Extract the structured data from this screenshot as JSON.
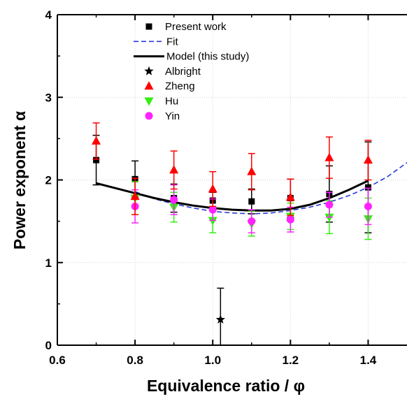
{
  "chart_data": {
    "type": "scatter",
    "xlabel": "Equivalence ratio / φ",
    "ylabel": "Power exponent α",
    "xlim": [
      0.6,
      1.5
    ],
    "ylim": [
      0,
      4
    ],
    "xticks": [
      "0.6",
      "0.8",
      "1.0",
      "1.2",
      "1.4"
    ],
    "yticks": [
      "0",
      "1",
      "2",
      "3",
      "4"
    ],
    "grid": true,
    "legend_position": "top-center",
    "series": [
      {
        "name": "Present work",
        "kind": "marker",
        "marker": "square",
        "color": "#000000",
        "points": [
          {
            "x": 0.7,
            "y": 2.24,
            "err_lo": 0.3,
            "err_hi": 0.3
          },
          {
            "x": 0.8,
            "y": 2.01,
            "err_lo": 0.22,
            "err_hi": 0.22
          },
          {
            "x": 0.9,
            "y": 1.78,
            "err_lo": 0.17,
            "err_hi": 0.17
          },
          {
            "x": 1.0,
            "y": 1.75,
            "err_lo": 0.1,
            "err_hi": 0.1
          },
          {
            "x": 1.1,
            "y": 1.74,
            "err_lo": 0.15,
            "err_hi": 0.15
          },
          {
            "x": 1.2,
            "y": 1.78,
            "err_lo": 0.23,
            "err_hi": 0.23
          },
          {
            "x": 1.3,
            "y": 1.83,
            "err_lo": 0.34,
            "err_hi": 0.34
          },
          {
            "x": 1.4,
            "y": 1.91,
            "err_lo": 0.55,
            "err_hi": 0.55
          }
        ]
      },
      {
        "name": "Fit",
        "kind": "dashed-line",
        "color": "#2a3bd9",
        "x": [
          0.8,
          0.85,
          0.9,
          0.95,
          1.0,
          1.05,
          1.1,
          1.15,
          1.2,
          1.25,
          1.3,
          1.35,
          1.4,
          1.45,
          1.5
        ],
        "y": [
          1.86,
          1.77,
          1.71,
          1.66,
          1.62,
          1.6,
          1.59,
          1.6,
          1.63,
          1.67,
          1.73,
          1.81,
          1.91,
          2.04,
          2.21
        ]
      },
      {
        "name": "Model (this study)",
        "kind": "solid-line",
        "color": "#000000",
        "x": [
          0.7,
          0.75,
          0.8,
          0.85,
          0.9,
          0.95,
          1.0,
          1.05,
          1.1,
          1.15,
          1.2,
          1.25,
          1.3,
          1.35,
          1.4
        ],
        "y": [
          1.96,
          1.9,
          1.84,
          1.78,
          1.73,
          1.69,
          1.66,
          1.64,
          1.63,
          1.63,
          1.65,
          1.7,
          1.78,
          1.88,
          1.99
        ]
      },
      {
        "name": "Albright",
        "kind": "marker",
        "marker": "star",
        "color": "#000000",
        "points": [
          {
            "x": 1.02,
            "y": 0.31,
            "err_lo": 0.38,
            "err_hi": 0.38
          }
        ]
      },
      {
        "name": "Zheng",
        "kind": "marker",
        "marker": "triangle-up",
        "color": "#ff0000",
        "points": [
          {
            "x": 0.7,
            "y": 2.47,
            "err_lo": 0.22,
            "err_hi": 0.22
          },
          {
            "x": 0.8,
            "y": 1.8,
            "err_lo": 0.22,
            "err_hi": 0.22
          },
          {
            "x": 0.9,
            "y": 2.12,
            "err_lo": 0.23,
            "err_hi": 0.23
          },
          {
            "x": 1.0,
            "y": 1.89,
            "err_lo": 0.21,
            "err_hi": 0.21
          },
          {
            "x": 1.1,
            "y": 2.1,
            "err_lo": 0.22,
            "err_hi": 0.22
          },
          {
            "x": 1.2,
            "y": 1.79,
            "err_lo": 0.22,
            "err_hi": 0.22
          },
          {
            "x": 1.3,
            "y": 2.27,
            "err_lo": 0.25,
            "err_hi": 0.25
          },
          {
            "x": 1.4,
            "y": 2.24,
            "err_lo": 0.24,
            "err_hi": 0.24
          }
        ]
      },
      {
        "name": "Hu",
        "kind": "marker",
        "marker": "triangle-down",
        "color": "#33ee11",
        "points": [
          {
            "x": 0.8,
            "y": 1.78,
            "err_lo": 0.2,
            "err_hi": 0.2
          },
          {
            "x": 0.9,
            "y": 1.67,
            "err_lo": 0.18,
            "err_hi": 0.18
          },
          {
            "x": 1.0,
            "y": 1.51,
            "err_lo": 0.15,
            "err_hi": 0.15
          },
          {
            "x": 1.1,
            "y": 1.47,
            "err_lo": 0.15,
            "err_hi": 0.15
          },
          {
            "x": 1.2,
            "y": 1.56,
            "err_lo": 0.16,
            "err_hi": 0.16
          },
          {
            "x": 1.3,
            "y": 1.55,
            "err_lo": 0.2,
            "err_hi": 0.2
          },
          {
            "x": 1.4,
            "y": 1.53,
            "err_lo": 0.25,
            "err_hi": 0.25
          }
        ]
      },
      {
        "name": "Yin",
        "kind": "marker",
        "marker": "circle",
        "color": "#ff22ff",
        "points": [
          {
            "x": 0.8,
            "y": 1.68,
            "err_lo": 0.2,
            "err_hi": 0.2
          },
          {
            "x": 0.9,
            "y": 1.76,
            "err_lo": 0.18,
            "err_hi": 0.18
          },
          {
            "x": 1.0,
            "y": 1.64,
            "err_lo": 0.13,
            "err_hi": 0.13
          },
          {
            "x": 1.1,
            "y": 1.5,
            "err_lo": 0.14,
            "err_hi": 0.14
          },
          {
            "x": 1.2,
            "y": 1.52,
            "err_lo": 0.15,
            "err_hi": 0.15
          },
          {
            "x": 1.3,
            "y": 1.7,
            "err_lo": 0.15,
            "err_hi": 0.15
          },
          {
            "x": 1.4,
            "y": 1.68,
            "err_lo": 0.22,
            "err_hi": 0.22
          }
        ]
      }
    ]
  }
}
